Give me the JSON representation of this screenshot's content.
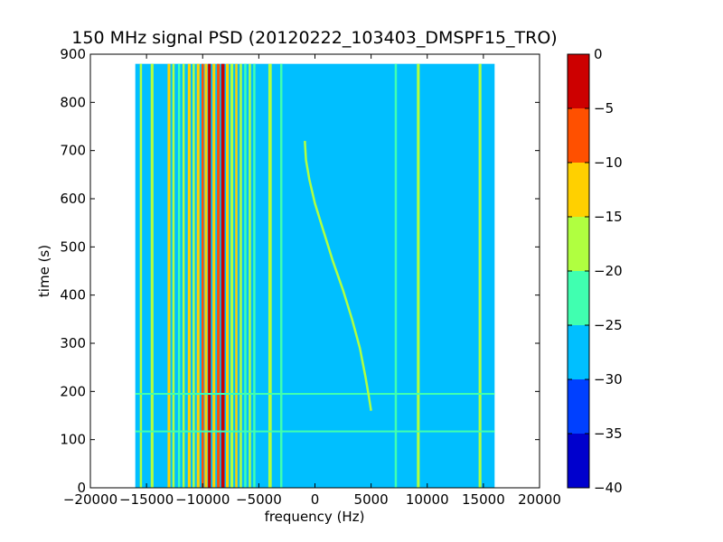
{
  "chart_data": {
    "type": "heatmap",
    "title": "150 MHz signal PSD (20120222_103403_DMSPF15_TRO)",
    "xlabel": "frequency (Hz)",
    "ylabel": "time (s)",
    "xlim": [
      -20000,
      20000
    ],
    "ylim": [
      0,
      900
    ],
    "x_ticks": [
      -20000,
      -15000,
      -10000,
      -5000,
      0,
      5000,
      10000,
      15000,
      20000
    ],
    "y_ticks": [
      0,
      100,
      200,
      300,
      400,
      500,
      600,
      700,
      800,
      900
    ],
    "data_extent": {
      "x": [
        -16000,
        16000
      ],
      "y": [
        0,
        880
      ]
    },
    "background_level": -27.5,
    "colorbar": {
      "levels": [
        -40,
        -35,
        -30,
        -25,
        -20,
        -15,
        -10,
        -5,
        0
      ],
      "ticks": [
        0,
        -5,
        -10,
        -15,
        -20,
        -25,
        -30,
        -35,
        -40
      ],
      "colors": [
        "#0000cd",
        "#0040ff",
        "#00bfff",
        "#40ffb0",
        "#b0ff40",
        "#ffd000",
        "#ff5000",
        "#cd0000"
      ]
    },
    "vertical_lines": [
      {
        "x": -15500,
        "level": -17.5,
        "width_hz": 200
      },
      {
        "x": -14500,
        "level": -17.5,
        "width_hz": 250
      },
      {
        "x": -13000,
        "level": -12.5,
        "width_hz": 250
      },
      {
        "x": -12600,
        "level": -17.5,
        "width_hz": 200
      },
      {
        "x": -12100,
        "level": -22.5,
        "width_hz": 200
      },
      {
        "x": -11700,
        "level": -17.5,
        "width_hz": 200
      },
      {
        "x": -11200,
        "level": -12.5,
        "width_hz": 250
      },
      {
        "x": -10800,
        "level": -17.5,
        "width_hz": 200
      },
      {
        "x": -10400,
        "level": -12.5,
        "width_hz": 250
      },
      {
        "x": -10000,
        "level": -7.5,
        "width_hz": 200
      },
      {
        "x": -9700,
        "level": -12.5,
        "width_hz": 250
      },
      {
        "x": -9400,
        "level": -2.5,
        "width_hz": 250
      },
      {
        "x": -9000,
        "level": -12.5,
        "width_hz": 250
      },
      {
        "x": -8600,
        "level": -7.5,
        "width_hz": 250
      },
      {
        "x": -8200,
        "level": -2.5,
        "width_hz": 300
      },
      {
        "x": -7800,
        "level": -12.5,
        "width_hz": 250
      },
      {
        "x": -7400,
        "level": -17.5,
        "width_hz": 250
      },
      {
        "x": -7000,
        "level": -12.5,
        "width_hz": 200
      },
      {
        "x": -6600,
        "level": -17.5,
        "width_hz": 200
      },
      {
        "x": -6200,
        "level": -22.5,
        "width_hz": 200
      },
      {
        "x": -5800,
        "level": -17.5,
        "width_hz": 200
      },
      {
        "x": -5400,
        "level": -22.5,
        "width_hz": 200
      },
      {
        "x": -4000,
        "level": -17.5,
        "width_hz": 300
      },
      {
        "x": -3000,
        "level": -22.5,
        "width_hz": 200
      },
      {
        "x": 7200,
        "level": -22.5,
        "width_hz": 200
      },
      {
        "x": 9200,
        "level": -17.5,
        "width_hz": 250
      },
      {
        "x": 14700,
        "level": -17.5,
        "width_hz": 250
      }
    ],
    "horizontal_lines": [
      {
        "y": 117,
        "level": -22.5
      },
      {
        "y": 195,
        "level": -22.5
      }
    ],
    "drifting_trace": {
      "level": -17.5,
      "points": [
        {
          "x": -900,
          "y": 720
        },
        {
          "x": -800,
          "y": 680
        },
        {
          "x": -500,
          "y": 640
        },
        {
          "x": 0,
          "y": 590
        },
        {
          "x": 800,
          "y": 530
        },
        {
          "x": 1600,
          "y": 470
        },
        {
          "x": 2500,
          "y": 410
        },
        {
          "x": 3300,
          "y": 350
        },
        {
          "x": 4000,
          "y": 290
        },
        {
          "x": 4500,
          "y": 230
        },
        {
          "x": 4800,
          "y": 190
        },
        {
          "x": 5000,
          "y": 160
        }
      ]
    }
  }
}
